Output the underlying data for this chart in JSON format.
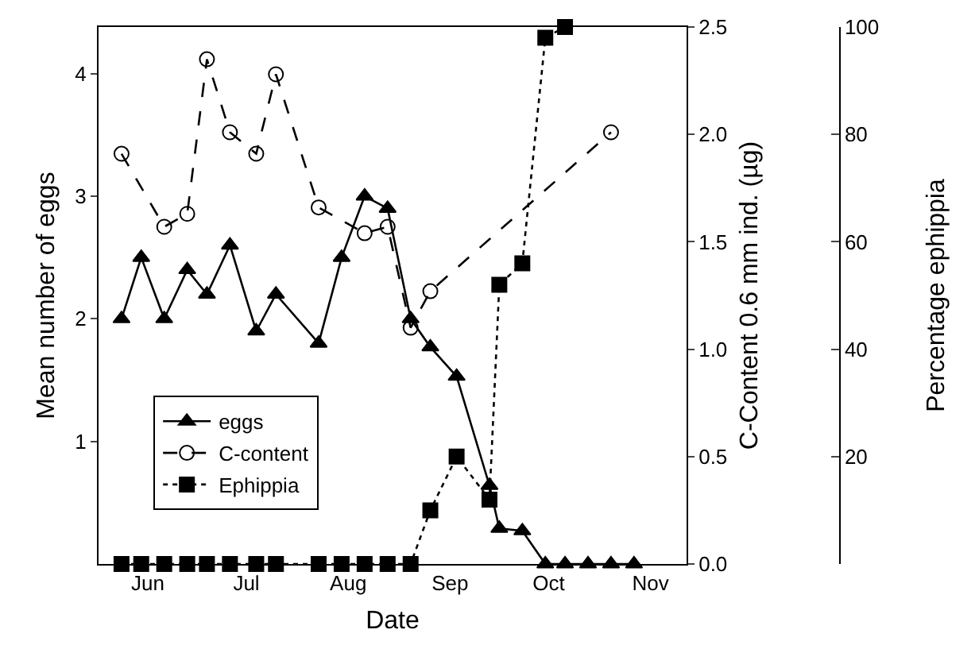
{
  "chart_data": {
    "type": "line",
    "xlabel": "Date",
    "ylabel": "Mean number of eggs",
    "y2label": "C-Content 0.6 mm ind. (µg)",
    "y3label": "Percentage ephippia",
    "xlim": [
      "--05-31",
      "--11-26"
    ],
    "xticks": [
      {
        "value": "--06-15",
        "label": "Jun"
      },
      {
        "value": "--07-15",
        "label": "Jul"
      },
      {
        "value": "--08-15",
        "label": "Aug"
      },
      {
        "value": "--09-15",
        "label": "Sep"
      },
      {
        "value": "--10-15",
        "label": "Oct"
      },
      {
        "value": "--11-15",
        "label": "Nov"
      }
    ],
    "ylim": [
      0,
      4.38
    ],
    "yticks": [
      1,
      2,
      3,
      4
    ],
    "y2lim": [
      0,
      2.5
    ],
    "y2ticks": [
      {
        "value": 0,
        "label": "0.0"
      },
      0.5,
      {
        "value": 1,
        "label": "1.0"
      },
      1.5,
      {
        "value": 2,
        "label": "2.0"
      },
      2.5
    ],
    "y3lim": [
      0,
      100
    ],
    "y3ticks": [
      {
        "value": 0,
        "label": null
      },
      20,
      40,
      60,
      80,
      100
    ],
    "grid": false,
    "legend": "bottom left",
    "series": [
      {
        "name": "eggs",
        "color": "#000000",
        "marker": "triangle",
        "line_style": "solid",
        "x": [
          "--06-07",
          "--06-13",
          "--06-20",
          "--06-27",
          "--07-03",
          "--07-10",
          "--07-18",
          "--07-24",
          "--08-06",
          "--08-13",
          "--08-20",
          "--08-27",
          "--09-03",
          "--09-09",
          "--09-17",
          "--09-27",
          "--09-30",
          "--10-07",
          "--10-14",
          "--10-20",
          "--10-27",
          "--11-03",
          "--11-10"
        ],
        "values": [
          2.0,
          2.5,
          2.0,
          2.4,
          2.2,
          2.6,
          1.9,
          2.2,
          1.8,
          2.5,
          3.0,
          2.9,
          2.0,
          1.77,
          1.53,
          0.64,
          0.29,
          0.27,
          0,
          0,
          0,
          0,
          0
        ]
      },
      {
        "name": "C-content",
        "color": "#000000",
        "marker": "circle",
        "line_style": "dashed",
        "axis": "y2",
        "x": [
          "--06-07",
          "--06-20",
          "--06-27",
          "--07-03",
          "--07-10",
          "--07-18",
          "--07-24",
          "--08-06",
          "--08-20",
          "--08-27",
          "--09-03",
          "--09-09",
          "--11-03"
        ],
        "values": [
          1.91,
          1.57,
          1.63,
          2.35,
          2.01,
          1.91,
          2.28,
          1.66,
          1.54,
          1.57,
          1.1,
          1.27,
          2.01
        ]
      },
      {
        "name": "Ephippia",
        "color": "#000000",
        "marker": "square",
        "line_style": "dotted",
        "axis": "y3",
        "x": [
          "--06-07",
          "--06-13",
          "--06-20",
          "--06-27",
          "--07-03",
          "--07-10",
          "--07-18",
          "--07-24",
          "--08-06",
          "--08-13",
          "--08-20",
          "--08-27",
          "--09-03",
          "--09-09",
          "--09-17",
          "--09-27",
          "--09-30",
          "--10-07",
          "--10-14",
          "--10-20"
        ],
        "values": [
          0,
          0,
          0,
          0,
          0,
          0,
          0,
          0,
          0,
          0,
          0,
          0,
          0,
          10,
          20,
          12,
          52,
          56,
          98,
          100
        ]
      }
    ]
  }
}
